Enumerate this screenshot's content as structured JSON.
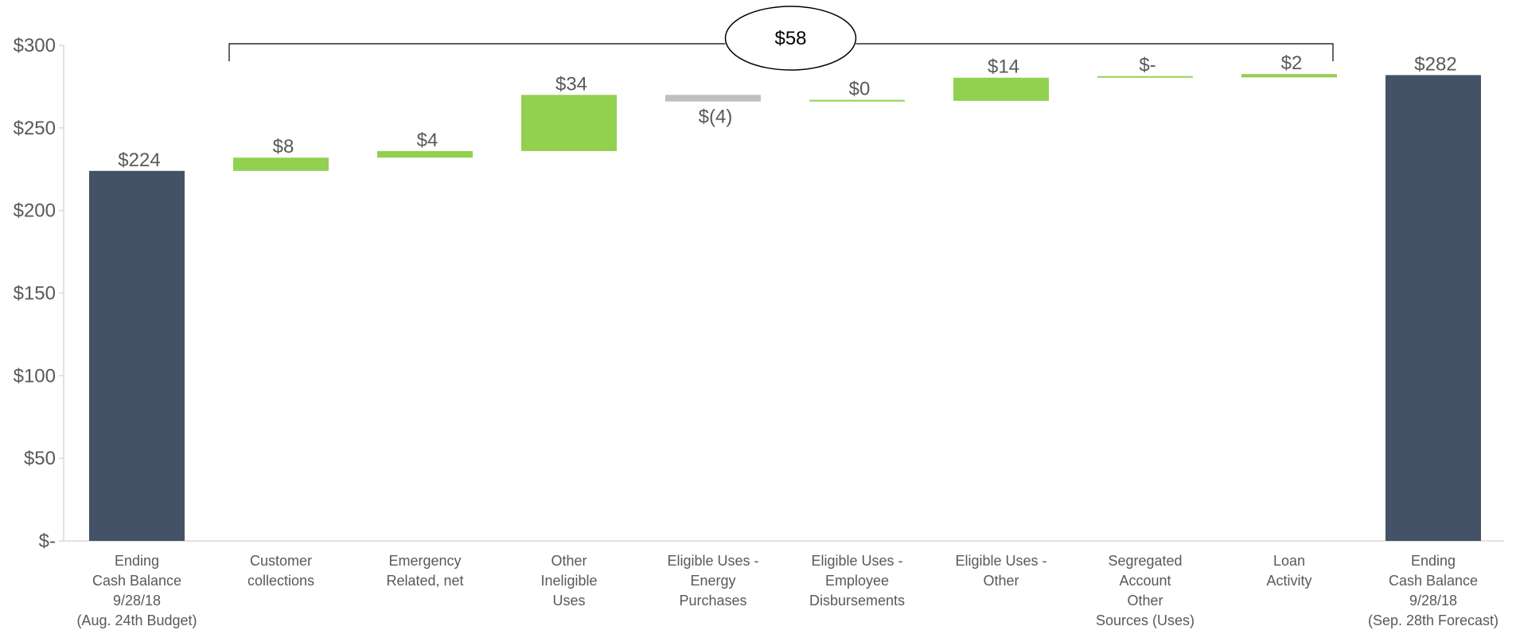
{
  "chart_data": {
    "type": "bar",
    "subtype": "waterfall",
    "title": "",
    "xlabel": "",
    "ylabel": "",
    "ylim": [
      0,
      300
    ],
    "y_ticks": [
      {
        "value": 0,
        "label": "$-"
      },
      {
        "value": 50,
        "label": "$50"
      },
      {
        "value": 100,
        "label": "$100"
      },
      {
        "value": 150,
        "label": "$150"
      },
      {
        "value": 200,
        "label": "$200"
      },
      {
        "value": 250,
        "label": "$250"
      },
      {
        "value": 300,
        "label": "$300"
      }
    ],
    "grid": false,
    "legend": "none",
    "categories": [
      [
        "Ending",
        "Cash Balance",
        "9/28/18",
        "(Aug. 24th Budget)"
      ],
      [
        "Customer",
        "collections"
      ],
      [
        "Emergency",
        "Related, net"
      ],
      [
        "Other",
        "Ineligible",
        "Uses"
      ],
      [
        "Eligible Uses -",
        "Energy",
        "Purchases"
      ],
      [
        "Eligible Uses -",
        "Employee",
        "Disbursements"
      ],
      [
        "Eligible Uses -",
        "Other"
      ],
      [
        "Segregated",
        "Account",
        "Other",
        "Sources (Uses)"
      ],
      [
        "Loan",
        "Activity"
      ],
      [
        "Ending",
        "Cash Balance",
        "9/28/18",
        "(Sep. 28th Forecast)"
      ]
    ],
    "bars": [
      {
        "kind": "total",
        "start": 0,
        "end": 224,
        "label": "$224"
      },
      {
        "kind": "increase",
        "start": 224,
        "end": 232,
        "label": "$8"
      },
      {
        "kind": "increase",
        "start": 232,
        "end": 236,
        "label": "$4"
      },
      {
        "kind": "increase",
        "start": 236,
        "end": 270,
        "label": "$34"
      },
      {
        "kind": "decrease",
        "start": 270,
        "end": 266,
        "label": "$(4)"
      },
      {
        "kind": "increase",
        "start": 266,
        "end": 266.4,
        "label": "$0"
      },
      {
        "kind": "increase",
        "start": 266.4,
        "end": 280.4,
        "label": "$14"
      },
      {
        "kind": "increase",
        "start": 280.4,
        "end": 280.6,
        "label": "$-"
      },
      {
        "kind": "increase",
        "start": 280.6,
        "end": 282.6,
        "label": "$2"
      },
      {
        "kind": "total",
        "start": 0,
        "end": 282,
        "label": "$282"
      }
    ],
    "bracket": {
      "from_index": 1,
      "to_index": 8,
      "label": "$58"
    },
    "colors": {
      "total": "#435266",
      "increase": "#92d050",
      "decrease": "#bfbfbf",
      "axis": "#d9d9d9",
      "text": "#595959",
      "bracket": "#000000"
    }
  }
}
